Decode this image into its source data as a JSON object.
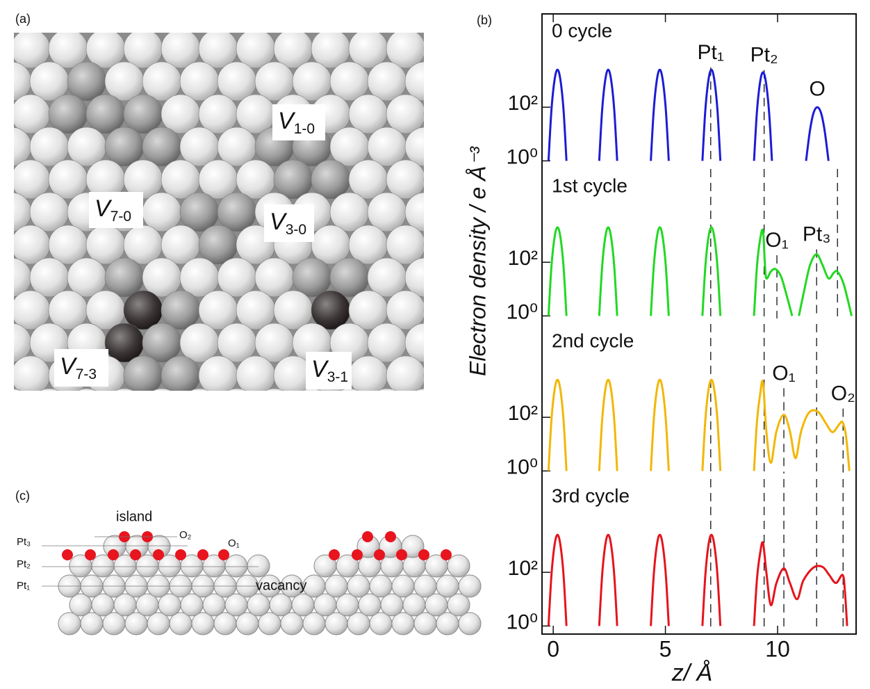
{
  "panel_labels": {
    "a": "(a)",
    "b": "(b)",
    "c": "(c)"
  },
  "panel_a": {
    "labels": [
      {
        "main": "V",
        "sub": "1-0"
      },
      {
        "main": "V",
        "sub": "7-0"
      },
      {
        "main": "V",
        "sub": "3-0"
      },
      {
        "main": "V",
        "sub": "7-3"
      },
      {
        "main": "V",
        "sub": "3-1"
      }
    ]
  },
  "panel_c": {
    "labels": [
      "island",
      "O₂",
      "O₁",
      "Pt₃",
      "Pt₂",
      "Pt₁",
      "vacancy"
    ]
  },
  "chart_data": [
    {
      "type": "line",
      "title": "0 cycle",
      "ylabel": "Electron density / e Å⁻³",
      "log": true,
      "xlim": [
        -0.5,
        13.5
      ],
      "ylim": [
        0.5,
        300000
      ],
      "yticks": [
        {
          "value": 1,
          "label": "10⁰"
        },
        {
          "value": 100,
          "label": "10²"
        }
      ],
      "x": [
        -0.21,
        -0.08,
        0.06,
        0.19,
        0.32,
        0.46,
        0.59,
        null,
        2.05,
        2.18,
        2.32,
        2.45,
        2.58,
        2.72,
        2.85,
        null,
        4.35,
        4.48,
        4.62,
        4.75,
        4.88,
        5.02,
        5.15,
        null,
        6.65,
        6.78,
        6.92,
        7.05,
        7.18,
        7.32,
        7.45,
        null,
        8.95,
        9.08,
        9.22,
        9.35,
        9.48,
        9.62,
        9.75,
        null,
        11.27,
        11.44,
        11.6,
        11.77,
        11.94,
        12.1,
        12.27
      ],
      "series": [
        {
          "color": "#1c1cd6",
          "values": [
            1,
            78,
            1050,
            2500,
            1050,
            78,
            1,
            null,
            1,
            78,
            1050,
            2500,
            1050,
            78,
            1,
            null,
            1,
            78,
            1050,
            2500,
            1050,
            78,
            1,
            null,
            1,
            78,
            1050,
            2500,
            1050,
            78,
            1,
            null,
            1,
            68,
            860,
            2000,
            860,
            68,
            1,
            null,
            1,
            13,
            60,
            100,
            60,
            13,
            1
          ]
        }
      ],
      "annotations": [
        {
          "text": "Pt₁",
          "x": 7.02,
          "y": 10000
        },
        {
          "text": "Pt₂",
          "x": 9.4,
          "y": 8000
        },
        {
          "text": "O",
          "x": 11.77,
          "y": 440
        }
      ],
      "guides": [
        7.02,
        9.4
      ]
    },
    {
      "type": "line",
      "title": "1st cycle",
      "log": true,
      "xlim": [
        -0.5,
        13.5
      ],
      "ylim": [
        0.5,
        300000
      ],
      "yticks": [
        {
          "value": 1,
          "label": "10⁰"
        },
        {
          "value": 100,
          "label": "10²"
        }
      ],
      "x": [
        -0.21,
        -0.08,
        0.06,
        0.19,
        0.32,
        0.46,
        0.59,
        null,
        2.05,
        2.18,
        2.32,
        2.45,
        2.58,
        2.72,
        2.85,
        null,
        4.35,
        4.48,
        4.62,
        4.75,
        4.88,
        5.02,
        5.15,
        null,
        6.65,
        6.78,
        6.92,
        7.05,
        7.18,
        7.32,
        7.45,
        null,
        8.95,
        9.08,
        9.22,
        9.35,
        9.43,
        9.5,
        9.7,
        9.9,
        10.15,
        10.4,
        10.65,
        null,
        10.95,
        11.2,
        11.45,
        11.74,
        12.0,
        12.27,
        12.5,
        12.67,
        12.95,
        13.3
      ],
      "series": [
        {
          "color": "#22d822",
          "values": [
            1,
            68,
            860,
            2000,
            860,
            68,
            1,
            null,
            1,
            68,
            860,
            2000,
            860,
            68,
            1,
            null,
            1,
            68,
            860,
            2000,
            860,
            68,
            1,
            null,
            1,
            68,
            860,
            2000,
            860,
            68,
            1,
            null,
            1,
            68,
            700,
            1500,
            100,
            25,
            45,
            56,
            30,
            6,
            1,
            null,
            1,
            10,
            80,
            200,
            80,
            25,
            40,
            45,
            15,
            1
          ]
        }
      ],
      "annotations": [
        {
          "text": "O₁",
          "x": 9.97,
          "y": 600
        },
        {
          "text": "Pt₃",
          "x": 11.74,
          "y": 1000
        }
      ],
      "guides": [
        7.02,
        9.4,
        9.97,
        11.74,
        12.67
      ]
    },
    {
      "type": "line",
      "title": "2nd cycle",
      "log": true,
      "xlim": [
        -0.5,
        13.5
      ],
      "ylim": [
        0.5,
        300000
      ],
      "yticks": [
        {
          "value": 1,
          "label": "10⁰"
        },
        {
          "value": 100,
          "label": "10²"
        }
      ],
      "x": [
        -0.21,
        -0.08,
        0.06,
        0.19,
        0.32,
        0.46,
        0.59,
        null,
        2.05,
        2.18,
        2.32,
        2.45,
        2.58,
        2.72,
        2.85,
        null,
        4.35,
        4.48,
        4.62,
        4.75,
        4.88,
        5.02,
        5.15,
        null,
        6.65,
        6.78,
        6.92,
        7.05,
        7.18,
        7.32,
        7.45,
        null,
        8.95,
        9.08,
        9.22,
        9.35,
        9.5,
        9.7,
        9.95,
        10.28,
        10.55,
        10.8,
        11.05,
        11.4,
        11.8,
        12.15,
        12.45,
        12.75,
        12.9,
        13.05,
        13.2
      ],
      "series": [
        {
          "color": "#f2b705",
          "values": [
            1,
            78,
            1050,
            2500,
            1050,
            78,
            1,
            null,
            1,
            78,
            1050,
            2500,
            1050,
            78,
            1,
            null,
            1,
            78,
            1050,
            2500,
            1050,
            78,
            1,
            null,
            1,
            78,
            1050,
            2500,
            1050,
            78,
            1,
            null,
            1,
            68,
            700,
            2000,
            30,
            2,
            30,
            125,
            30,
            3,
            30,
            150,
            160,
            60,
            28,
            55,
            65,
            20,
            1
          ]
        }
      ],
      "annotations": [
        {
          "text": "O₁",
          "x": 10.28,
          "y": 4000
        },
        {
          "text": "O₂",
          "x": 12.92,
          "y": 700
        }
      ],
      "guides": [
        7.02,
        9.4,
        10.28,
        11.74,
        12.92
      ]
    },
    {
      "type": "line",
      "title": "3rd cycle",
      "log": true,
      "xlabel": "z/ Å",
      "xlim": [
        -0.5,
        13.5
      ],
      "ylim": [
        0.5,
        300000
      ],
      "xticks": [
        0,
        5,
        10
      ],
      "yticks": [
        {
          "value": 1,
          "label": "10⁰"
        },
        {
          "value": 100,
          "label": "10²"
        }
      ],
      "x": [
        -0.21,
        -0.08,
        0.06,
        0.19,
        0.32,
        0.46,
        0.59,
        null,
        2.05,
        2.18,
        2.32,
        2.45,
        2.58,
        2.72,
        2.85,
        null,
        4.35,
        4.48,
        4.62,
        4.75,
        4.88,
        5.02,
        5.15,
        null,
        6.65,
        6.78,
        6.92,
        7.05,
        7.18,
        7.32,
        7.45,
        null,
        8.95,
        9.08,
        9.22,
        9.35,
        9.5,
        9.7,
        9.95,
        10.28,
        10.55,
        10.87,
        11.15,
        11.6,
        12.0,
        12.3,
        12.6,
        12.9,
        13.0,
        13.1
      ],
      "series": [
        {
          "color": "#e5141c",
          "values": [
            1,
            78,
            1050,
            2500,
            1050,
            78,
            1,
            null,
            1,
            78,
            1050,
            2500,
            1050,
            78,
            1,
            null,
            1,
            78,
            1050,
            2500,
            1050,
            78,
            1,
            null,
            1,
            78,
            1050,
            2500,
            1050,
            78,
            1,
            null,
            1,
            55,
            500,
            1250,
            100,
            6,
            40,
            140,
            40,
            10,
            50,
            150,
            160,
            80,
            40,
            80,
            20,
            1
          ]
        }
      ],
      "annotations": [],
      "guides": [
        7.02,
        9.4,
        10.28,
        11.74,
        12.92
      ]
    }
  ]
}
